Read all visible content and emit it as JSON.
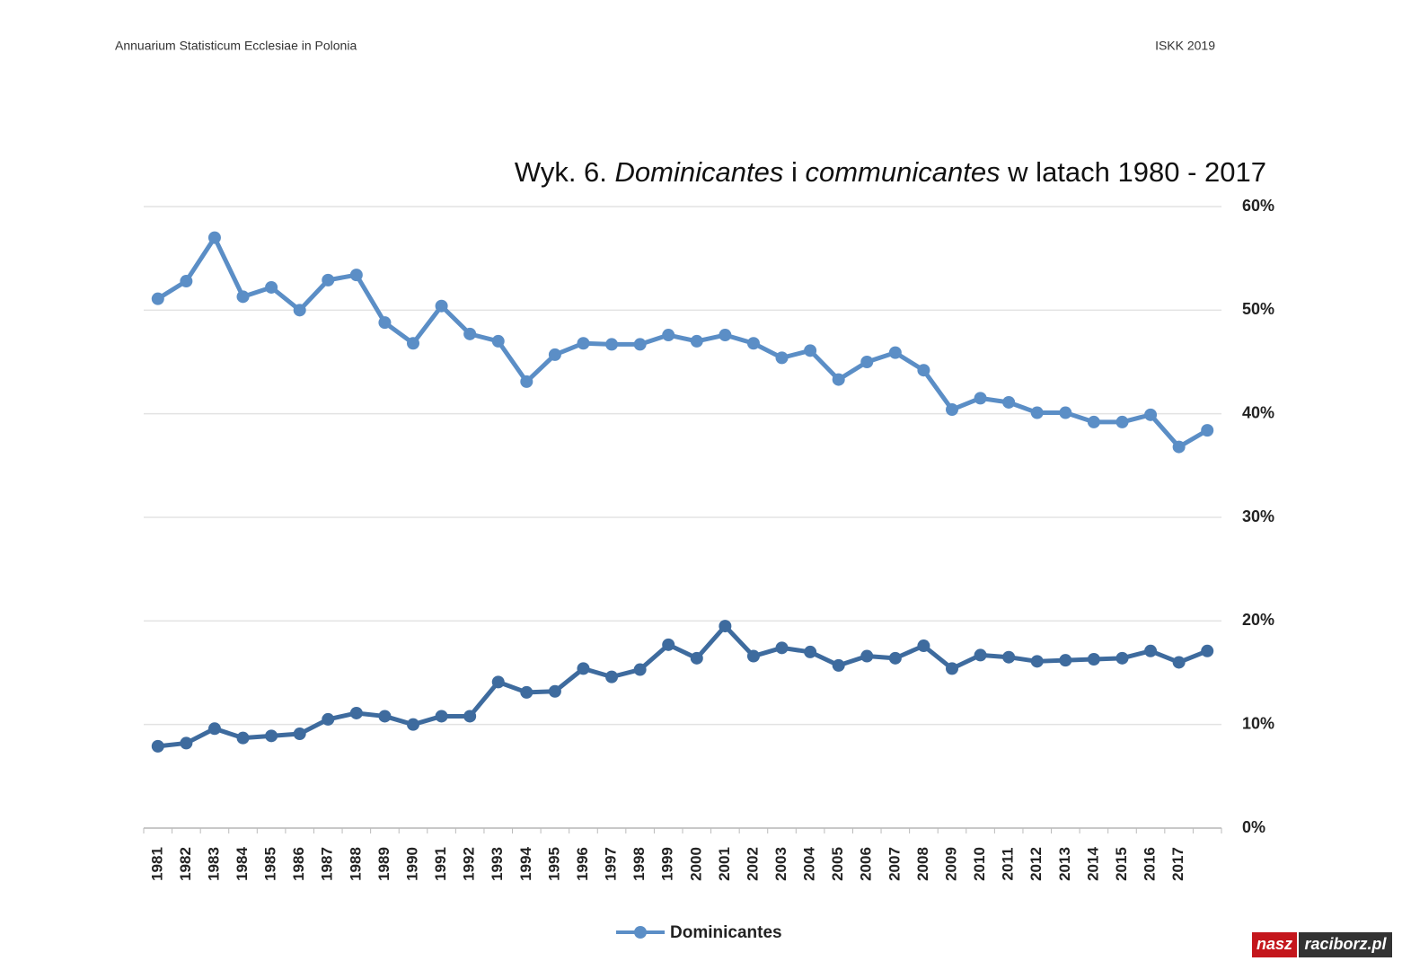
{
  "header": {
    "left": "Annuarium Statisticum Ecclesiae in Polonia",
    "right": "ISKK 2019"
  },
  "chart_data": {
    "type": "line",
    "title": [
      {
        "text": "Wyk. 6. ",
        "italic": false
      },
      {
        "text": "Dominicantes",
        "italic": true
      },
      {
        "text": " i ",
        "italic": false
      },
      {
        "text": "communicantes",
        "italic": true
      },
      {
        "text": " w latach 1980 - 2017",
        "italic": false
      }
    ],
    "categories": [
      "1981",
      "1982",
      "1983",
      "1984",
      "1985",
      "1986",
      "1987",
      "1988",
      "1989",
      "1990",
      "1991",
      "1992",
      "1993",
      "1994",
      "1995",
      "1996",
      "1997",
      "1998",
      "1999",
      "2000",
      "2001",
      "2002",
      "2003",
      "2004",
      "2005",
      "2006",
      "2007",
      "2008",
      "2009",
      "2010",
      "2011",
      "2012",
      "2013",
      "2014",
      "2015",
      "2016",
      "2017",
      null
    ],
    "series": [
      {
        "name": "Dominicantes",
        "color": "#5b8ec6",
        "values": [
          51.1,
          52.8,
          57.0,
          51.3,
          52.2,
          50.0,
          52.9,
          53.4,
          48.8,
          46.8,
          50.4,
          47.7,
          47.0,
          43.1,
          45.7,
          46.8,
          46.7,
          46.7,
          47.6,
          47.0,
          47.6,
          46.8,
          45.4,
          46.1,
          43.3,
          45.0,
          45.9,
          44.2,
          40.4,
          41.5,
          41.1,
          40.1,
          40.1,
          39.2,
          39.2,
          39.9,
          36.8,
          38.4
        ]
      },
      {
        "color": "#3e6b9e",
        "values": [
          7.9,
          8.2,
          9.6,
          8.7,
          8.9,
          9.1,
          10.5,
          11.1,
          10.8,
          10.0,
          10.8,
          10.8,
          14.1,
          13.1,
          13.2,
          15.4,
          14.6,
          15.3,
          17.7,
          16.4,
          19.5,
          16.6,
          17.4,
          17.0,
          15.7,
          16.6,
          16.4,
          17.6,
          15.4,
          16.7,
          16.5,
          16.1,
          16.2,
          16.3,
          16.4,
          17.1,
          16.0,
          17.1
        ]
      }
    ],
    "ylim": [
      0,
      60
    ],
    "yticks": [
      {
        "value": 0,
        "label": "0%"
      },
      {
        "value": 10,
        "label": "10%"
      },
      {
        "value": 20,
        "label": "20%"
      },
      {
        "value": 30,
        "label": "30%"
      },
      {
        "value": 40,
        "label": "40%"
      },
      {
        "value": 50,
        "label": "50%"
      },
      {
        "value": 60,
        "label": "60%"
      }
    ],
    "grid": true,
    "legend": "bottom"
  },
  "watermark": {
    "left": "nasz",
    "right": "raciborz.pl"
  }
}
